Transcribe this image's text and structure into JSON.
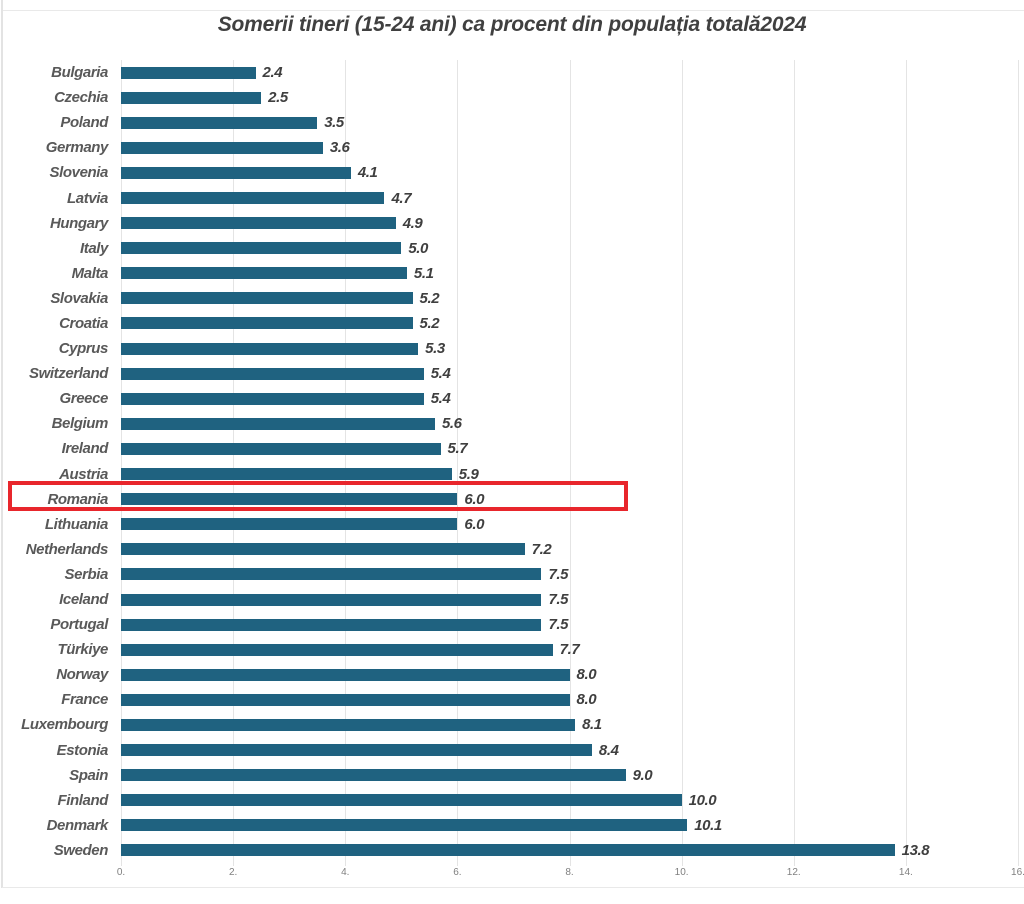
{
  "chart_data": {
    "type": "bar",
    "orientation": "horizontal",
    "title": "Somerii tineri (15-24 ani) ca procent din populația totală2024",
    "categories": [
      "Bulgaria",
      "Czechia",
      "Poland",
      "Germany",
      "Slovenia",
      "Latvia",
      "Hungary",
      "Italy",
      "Malta",
      "Slovakia",
      "Croatia",
      "Cyprus",
      "Switzerland",
      "Greece",
      "Belgium",
      "Ireland",
      "Austria",
      "Romania",
      "Lithuania",
      "Netherlands",
      "Serbia",
      "Iceland",
      "Portugal",
      "Türkiye",
      "Norway",
      "France",
      "Luxembourg",
      "Estonia",
      "Spain",
      "Finland",
      "Denmark",
      "Sweden"
    ],
    "values": [
      2.4,
      2.5,
      3.5,
      3.6,
      4.1,
      4.7,
      4.9,
      5.0,
      5.1,
      5.2,
      5.2,
      5.3,
      5.4,
      5.4,
      5.6,
      5.7,
      5.9,
      6.0,
      6.0,
      7.2,
      7.5,
      7.5,
      7.5,
      7.7,
      8.0,
      8.0,
      8.1,
      8.4,
      9.0,
      10.0,
      10.1,
      13.8
    ],
    "value_labels": [
      "2.4",
      "2.5",
      "3.5",
      "3.6",
      "4.1",
      "4.7",
      "4.9",
      "5.0",
      "5.1",
      "5.2",
      "5.2",
      "5.3",
      "5.4",
      "5.4",
      "5.6",
      "5.7",
      "5.9",
      "6.0",
      "6.0",
      "7.2",
      "7.5",
      "7.5",
      "7.5",
      "7.7",
      "8.0",
      "8.0",
      "8.1",
      "8.4",
      "9.0",
      "10.0",
      "10.1",
      "13.8"
    ],
    "x_ticks": [
      "0.",
      "2.",
      "4.",
      "6.",
      "8.",
      "10.",
      "12.",
      "14.",
      "16."
    ],
    "xlim": [
      0,
      16
    ],
    "xlabel": "",
    "ylabel": "",
    "grid": true,
    "legend": false,
    "bar_color": "#1f6280",
    "highlight": {
      "country": "Romania",
      "box_color": "#e8262c"
    }
  }
}
